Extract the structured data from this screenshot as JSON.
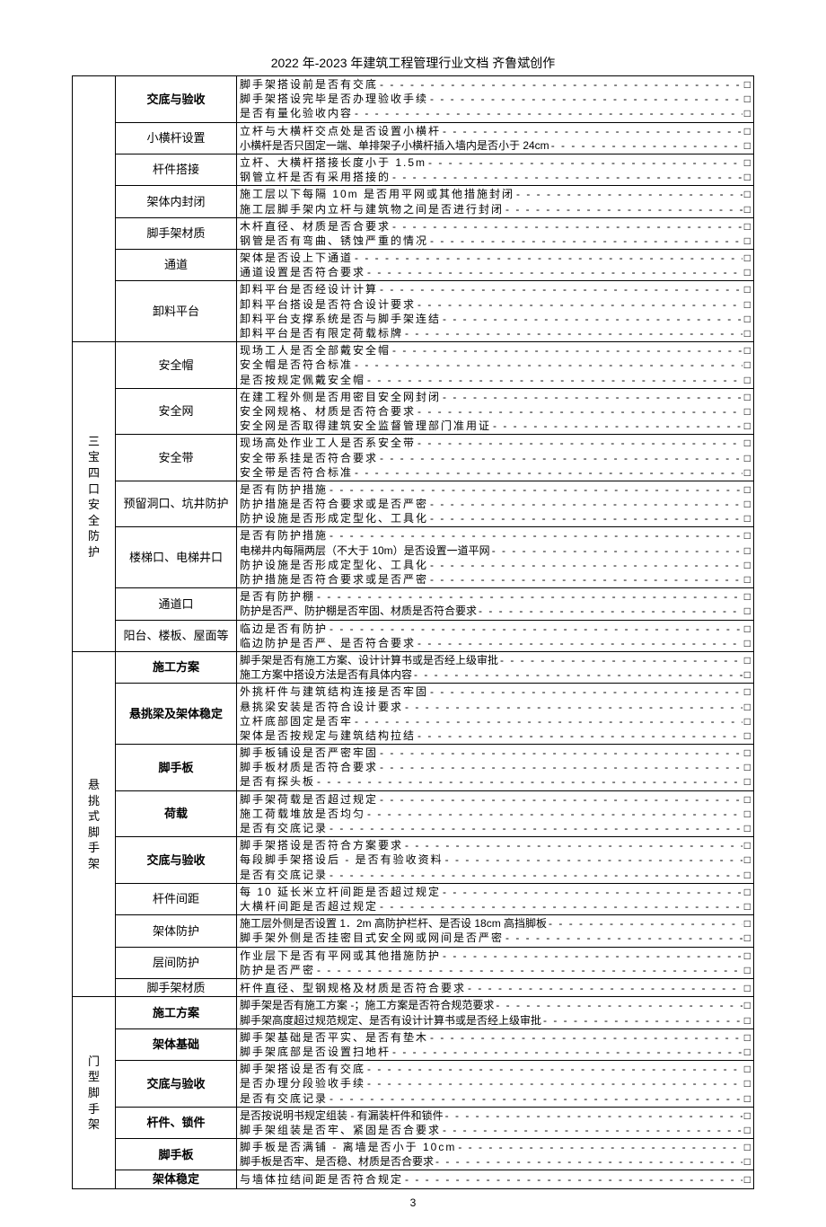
{
  "header": "2022 年-2023 年建筑工程管理行业文档 齐鲁斌创作",
  "page_number": "3",
  "colors": {
    "text": "#000000",
    "border": "#000000",
    "bg": "#ffffff"
  },
  "sections": [
    {
      "category": "",
      "category_rowspan": 7,
      "rows": [
        {
          "item": "交底与验收",
          "bold": true,
          "lines": [
            {
              "t": "脚手架搭设前是否有交底"
            },
            {
              "t": "脚手架搭设完毕是否办理验收手续"
            },
            {
              "t": "是否有量化验收内容"
            }
          ]
        },
        {
          "item": "小横杆设置",
          "lines": [
            {
              "t": "立杆与大横杆交点处是否设置小横杆"
            },
            {
              "t": "小横杆是否只固定一端、单排架子小横杆插入墙内是否小于 24cm",
              "tight": true
            }
          ]
        },
        {
          "item": "杆件搭接",
          "lines": [
            {
              "t": "立杆、大横杆搭接长度小于 1.5m"
            },
            {
              "t": "钢管立杆是否有采用搭接的"
            }
          ]
        },
        {
          "item": "架体内封闭",
          "lines": [
            {
              "t": "施工层以下每隔 10m 是否用平网或其他措施封闭"
            },
            {
              "t": "施工层脚手架内立杆与建筑物之间是否进行封闭"
            }
          ]
        },
        {
          "item": "脚手架材质",
          "lines": [
            {
              "t": "木杆直径、材质是否合要求"
            },
            {
              "t": "钢管是否有弯曲、锈蚀严重的情况"
            }
          ]
        },
        {
          "item": "通道",
          "lines": [
            {
              "t": "架体是否设上下通道"
            },
            {
              "t": "通道设置是否符合要求"
            }
          ]
        },
        {
          "item": "卸料平台",
          "lines": [
            {
              "t": "卸料平台是否经设计计算"
            },
            {
              "t": "卸料平台搭设是否符合设计要求"
            },
            {
              "t": "卸料平台支撑系统是否与脚手架连结"
            },
            {
              "t": "卸料平台是否有限定荷载标牌"
            }
          ]
        }
      ]
    },
    {
      "category": "三宝四口安全防护",
      "category_rowspan": 7,
      "rows": [
        {
          "item": "安全帽",
          "lines": [
            {
              "t": "现场工人是否全部戴安全帽"
            },
            {
              "t": "安全帽是否符合标准"
            },
            {
              "t": "是否按规定佩戴安全帽"
            }
          ]
        },
        {
          "item": "安全网",
          "lines": [
            {
              "t": "在建工程外侧是否用密目安全网封闭"
            },
            {
              "t": "安全网规格、材质是否符合要求"
            },
            {
              "t": "安全网是否取得建筑安全监督管理部门准用证"
            }
          ]
        },
        {
          "item": "安全带",
          "lines": [
            {
              "t": "现场高处作业工人是否系安全带"
            },
            {
              "t": "安全带系挂是否符合要求"
            },
            {
              "t": "安全带是否符合标准"
            }
          ]
        },
        {
          "item": "预留洞口、坑井防护",
          "lines": [
            {
              "t": "是否有防护措施"
            },
            {
              "t": "防护措施是否符合要求或是否严密"
            },
            {
              "t": "防护设施是否形成定型化、工具化"
            }
          ]
        },
        {
          "item": "楼梯口、电梯井口",
          "lines": [
            {
              "t": "是否有防护措施"
            },
            {
              "t": "电梯井内每隔两层（不大于 10m）是否设置一道平网",
              "tight": true
            },
            {
              "t": "防护设施是否形成定型化、工具化"
            },
            {
              "t": "防护措施是否符合要求或是否严密"
            }
          ]
        },
        {
          "item": "通道口",
          "lines": [
            {
              "t": "是否有防护棚"
            },
            {
              "t": "防护是否严、防护棚是否牢固、材质是否符合要求",
              "tight": true
            }
          ]
        },
        {
          "item": "阳台、楼板、屋面等",
          "lines": [
            {
              "t": "临边是否有防护"
            },
            {
              "t": "临边防护是否严、是否符合要求"
            }
          ]
        }
      ]
    },
    {
      "category": "悬挑式脚手架",
      "category_rowspan": 9,
      "rows": [
        {
          "item": "施工方案",
          "bold": true,
          "lines": [
            {
              "t": "脚手架是否有施工方案、设计计算书或是否经上级审批",
              "tight": true
            },
            {
              "t": "施工方案中搭设方法是否有具体内容",
              "tight": true
            }
          ]
        },
        {
          "item": "悬挑梁及架体稳定",
          "bold": true,
          "lines": [
            {
              "t": "外挑杆件与建筑结构连接是否牢固"
            },
            {
              "t": "悬挑梁安装是否符合设计要求"
            },
            {
              "t": "立杆底部固定是否牢"
            },
            {
              "t": "架体是否按规定与建筑结构拉结"
            }
          ]
        },
        {
          "item": "脚手板",
          "bold": true,
          "lines": [
            {
              "t": "脚手板铺设是否严密牢固"
            },
            {
              "t": "脚手板材质是否符合要求"
            },
            {
              "t": "是否有探头板"
            }
          ]
        },
        {
          "item": "荷载",
          "bold": true,
          "lines": [
            {
              "t": "脚手架荷载是否超过规定"
            },
            {
              "t": "施工荷载堆放是否均匀"
            },
            {
              "t": "是否有交底记录"
            }
          ]
        },
        {
          "item": "交底与验收",
          "bold": true,
          "lines": [
            {
              "t": "脚手架搭设是否符合方案要求"
            },
            {
              "t": "每段脚手架搭设后 - 是否有验收资料"
            },
            {
              "t": "是否有交底记录"
            }
          ]
        },
        {
          "item": "杆件间距",
          "lines": [
            {
              "t": "每 10 延长米立杆间距是否超过规定"
            },
            {
              "t": "大横杆间距是否超过规定"
            }
          ]
        },
        {
          "item": "架体防护",
          "lines": [
            {
              "t": "施工层外侧是否设置 1．2m 高防护栏杆、是否设 18cm 高挡脚板",
              "tight": true
            },
            {
              "t": "脚手架外侧是否挂密目式安全网或网间是否严密"
            }
          ]
        },
        {
          "item": "层间防护",
          "lines": [
            {
              "t": "作业层下是否有平网或其他措施防护"
            },
            {
              "t": "防护是否严密"
            }
          ]
        },
        {
          "item": "脚手架材质",
          "lines": [
            {
              "t": "杆件直径、型钢规格及材质是否符合要求"
            }
          ]
        }
      ]
    },
    {
      "category": "门型脚手架",
      "category_rowspan": 6,
      "rows": [
        {
          "item": "施工方案",
          "bold": true,
          "lines": [
            {
              "t": "脚手架是否有施工方案 -；施工方案是否符合规范要求",
              "tight": true
            },
            {
              "t": "脚手架高度超过规范规定、是否有设计计算书或是否经上级审批",
              "tight": true
            }
          ]
        },
        {
          "item": "架体基础",
          "bold": true,
          "lines": [
            {
              "t": "脚手架基础是否平实、是否有垫木"
            },
            {
              "t": "脚手架底部是否设置扫地杆"
            }
          ]
        },
        {
          "item": "交底与验收",
          "bold": true,
          "lines": [
            {
              "t": "脚手架搭设是否有交底"
            },
            {
              "t": "是否办理分段验收手续"
            },
            {
              "t": "是否有交底记录"
            }
          ]
        },
        {
          "item": "杆件、锁件",
          "bold": true,
          "lines": [
            {
              "t": "是否按说明书规定组装 - 有漏装杆件和锁件",
              "tight": true
            },
            {
              "t": "脚手架组装是否牢、紧固是否合要求"
            }
          ]
        },
        {
          "item": "脚手板",
          "bold": true,
          "lines": [
            {
              "t": "脚手板是否满铺 - 离墙是否小于 10cm"
            },
            {
              "t": "脚手板是否牢、是否稳、材质是否合要求",
              "tight": true
            }
          ]
        },
        {
          "item": "架体稳定",
          "bold": true,
          "lines": [
            {
              "t": "与墙体拉结间距是否符合规定"
            }
          ]
        }
      ]
    }
  ]
}
